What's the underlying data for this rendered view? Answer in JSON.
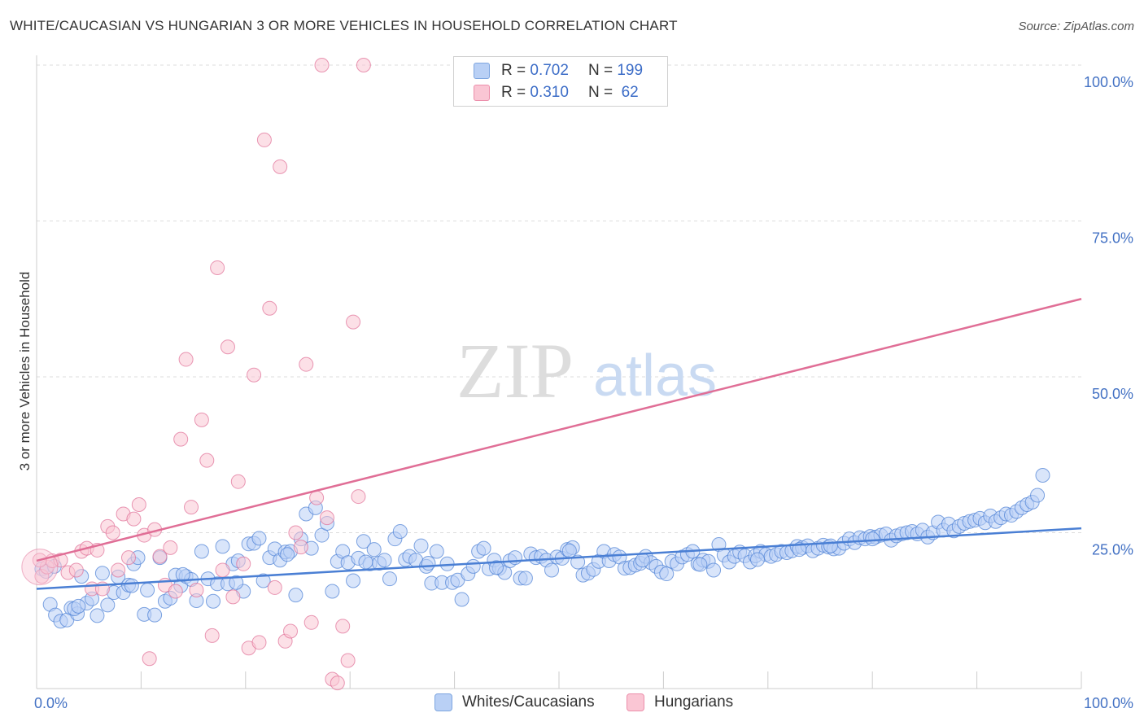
{
  "title": "WHITE/CAUCASIAN VS HUNGARIAN 3 OR MORE VEHICLES IN HOUSEHOLD CORRELATION CHART",
  "source": "Source: ZipAtlas.com",
  "watermark": {
    "zip": "ZIP",
    "atlas": "atlas"
  },
  "legend": {
    "rows": [
      {
        "r_label": "R =",
        "r_value": "0.702",
        "n_label": "N =",
        "n_value": "199",
        "color": "#7ea6e0"
      },
      {
        "r_label": "R =",
        "r_value": "0.310",
        "n_label": "N =",
        "n_value": " 62",
        "color": "#f0a0b8"
      }
    ]
  },
  "bottom_legend": [
    {
      "label": "Whites/Caucasians",
      "fill": "#b9d0f5",
      "border": "#7ea6e0"
    },
    {
      "label": "Hungarians",
      "fill": "#fac6d4",
      "border": "#ec8fab"
    }
  ],
  "chart_data": {
    "type": "scatter",
    "xlabel": "",
    "ylabel": "3 or more Vehicles in Household",
    "xlim": [
      0,
      100
    ],
    "ylim": [
      0,
      100
    ],
    "x_tick_labels": [
      "0.0%",
      "100.0%"
    ],
    "y_tick_labels": [
      "25.0%",
      "50.0%",
      "75.0%",
      "100.0%"
    ],
    "y_ticks": [
      25,
      50,
      75,
      100
    ],
    "grid": true,
    "series": [
      {
        "name": "Whites/Caucasians",
        "color": "#4a7fd4",
        "fill": "#b9d0f5",
        "trend": [
          [
            0,
            16.0
          ],
          [
            100,
            25.7
          ]
        ],
        "points": [
          [
            0.5,
            19.2
          ],
          [
            1.3,
            13.5
          ],
          [
            1.8,
            11.8
          ],
          [
            2.3,
            10.8
          ],
          [
            2.9,
            11.0
          ],
          [
            3.3,
            12.9
          ],
          [
            3.9,
            12.0
          ],
          [
            4.3,
            18.0
          ],
          [
            4.8,
            13.7
          ],
          [
            5.3,
            14.4
          ],
          [
            5.8,
            11.7
          ],
          [
            6.3,
            18.5
          ],
          [
            6.8,
            13.4
          ],
          [
            7.4,
            15.4
          ],
          [
            7.8,
            17.9
          ],
          [
            8.3,
            15.4
          ],
          [
            8.8,
            16.6
          ],
          [
            9.3,
            20.0
          ],
          [
            9.7,
            21.0
          ],
          [
            10.3,
            11.9
          ],
          [
            10.6,
            15.8
          ],
          [
            11.3,
            11.8
          ],
          [
            11.8,
            21.0
          ],
          [
            12.3,
            14.0
          ],
          [
            12.8,
            14.5
          ],
          [
            13.3,
            18.2
          ],
          [
            13.8,
            16.5
          ],
          [
            14.3,
            18.0
          ],
          [
            14.8,
            17.5
          ],
          [
            15.3,
            14.1
          ],
          [
            15.8,
            22.0
          ],
          [
            16.4,
            17.6
          ],
          [
            16.9,
            14.0
          ],
          [
            17.3,
            16.8
          ],
          [
            17.8,
            22.8
          ],
          [
            18.3,
            16.8
          ],
          [
            18.8,
            20.0
          ],
          [
            19.3,
            20.5
          ],
          [
            19.8,
            15.6
          ],
          [
            20.3,
            23.2
          ],
          [
            20.8,
            23.3
          ],
          [
            21.3,
            24.1
          ],
          [
            21.7,
            17.3
          ],
          [
            22.3,
            21.0
          ],
          [
            22.8,
            22.4
          ],
          [
            23.3,
            20.6
          ],
          [
            23.8,
            21.9
          ],
          [
            24.3,
            22.0
          ],
          [
            24.8,
            15.0
          ],
          [
            25.3,
            24.0
          ],
          [
            25.8,
            28.0
          ],
          [
            26.3,
            22.5
          ],
          [
            26.7,
            29.0
          ],
          [
            27.3,
            24.6
          ],
          [
            27.8,
            26.5
          ],
          [
            28.3,
            15.6
          ],
          [
            28.8,
            20.4
          ],
          [
            29.3,
            22.0
          ],
          [
            29.8,
            20.2
          ],
          [
            30.3,
            17.3
          ],
          [
            30.8,
            20.9
          ],
          [
            31.3,
            23.6
          ],
          [
            31.9,
            20.0
          ],
          [
            32.3,
            22.3
          ],
          [
            32.8,
            20.1
          ],
          [
            33.3,
            20.6
          ],
          [
            33.8,
            17.6
          ],
          [
            34.3,
            24.0
          ],
          [
            34.8,
            25.2
          ],
          [
            35.3,
            20.7
          ],
          [
            35.7,
            21.2
          ],
          [
            36.3,
            20.6
          ],
          [
            36.8,
            22.9
          ],
          [
            37.3,
            19.6
          ],
          [
            37.8,
            16.9
          ],
          [
            38.3,
            22.0
          ],
          [
            38.8,
            17.0
          ],
          [
            39.3,
            20.0
          ],
          [
            39.8,
            17.0
          ],
          [
            40.3,
            17.4
          ],
          [
            40.7,
            14.3
          ],
          [
            41.3,
            18.4
          ],
          [
            41.8,
            19.6
          ],
          [
            42.3,
            22.0
          ],
          [
            42.8,
            22.5
          ],
          [
            43.3,
            19.2
          ],
          [
            43.8,
            20.6
          ],
          [
            44.3,
            19.3
          ],
          [
            44.8,
            18.6
          ],
          [
            45.3,
            20.5
          ],
          [
            45.8,
            21.0
          ],
          [
            46.3,
            17.7
          ],
          [
            46.8,
            17.7
          ],
          [
            47.3,
            21.6
          ],
          [
            47.8,
            21.0
          ],
          [
            48.3,
            21.2
          ],
          [
            48.8,
            20.6
          ],
          [
            49.3,
            19.0
          ],
          [
            49.8,
            21.1
          ],
          [
            50.3,
            20.9
          ],
          [
            50.8,
            22.3
          ],
          [
            51.3,
            22.6
          ],
          [
            51.8,
            20.3
          ],
          [
            52.3,
            18.2
          ],
          [
            52.8,
            18.5
          ],
          [
            53.3,
            19.1
          ],
          [
            53.8,
            20.4
          ],
          [
            54.3,
            22.0
          ],
          [
            54.8,
            20.5
          ],
          [
            55.3,
            21.5
          ],
          [
            55.8,
            21.1
          ],
          [
            56.3,
            19.3
          ],
          [
            56.8,
            19.4
          ],
          [
            57.3,
            19.8
          ],
          [
            57.8,
            20.1
          ],
          [
            58.3,
            21.2
          ],
          [
            58.8,
            20.2
          ],
          [
            59.3,
            19.6
          ],
          [
            59.8,
            18.7
          ],
          [
            60.3,
            18.4
          ],
          [
            60.8,
            20.4
          ],
          [
            61.3,
            20.0
          ],
          [
            61.8,
            21.1
          ],
          [
            62.3,
            21.5
          ],
          [
            62.8,
            22.0
          ],
          [
            63.3,
            20.0
          ],
          [
            63.8,
            20.6
          ],
          [
            64.3,
            20.4
          ],
          [
            64.8,
            19.0
          ],
          [
            65.3,
            23.1
          ],
          [
            65.8,
            21.4
          ],
          [
            66.3,
            20.3
          ],
          [
            66.8,
            21.2
          ],
          [
            67.3,
            21.9
          ],
          [
            67.8,
            21.3
          ],
          [
            68.3,
            20.3
          ],
          [
            68.8,
            21.3
          ],
          [
            69.3,
            22.0
          ],
          [
            69.8,
            21.5
          ],
          [
            70.3,
            21.2
          ],
          [
            70.8,
            21.5
          ],
          [
            71.3,
            22.0
          ],
          [
            71.8,
            21.8
          ],
          [
            72.3,
            22.1
          ],
          [
            72.8,
            22.8
          ],
          [
            73.3,
            22.6
          ],
          [
            73.8,
            22.9
          ],
          [
            74.3,
            22.1
          ],
          [
            74.8,
            22.5
          ],
          [
            75.3,
            23.0
          ],
          [
            75.8,
            22.7
          ],
          [
            76.3,
            22.4
          ],
          [
            76.8,
            22.5
          ],
          [
            77.3,
            23.3
          ],
          [
            77.8,
            24.0
          ],
          [
            78.3,
            23.4
          ],
          [
            78.8,
            24.2
          ],
          [
            79.3,
            24.0
          ],
          [
            79.8,
            24.4
          ],
          [
            80.3,
            24.3
          ],
          [
            80.8,
            24.6
          ],
          [
            81.3,
            24.8
          ],
          [
            81.8,
            23.8
          ],
          [
            82.3,
            24.5
          ],
          [
            82.8,
            24.8
          ],
          [
            83.3,
            25.0
          ],
          [
            83.8,
            25.2
          ],
          [
            84.3,
            24.8
          ],
          [
            84.8,
            25.4
          ],
          [
            85.3,
            24.3
          ],
          [
            85.8,
            25.0
          ],
          [
            86.3,
            26.7
          ],
          [
            86.8,
            25.4
          ],
          [
            87.3,
            26.4
          ],
          [
            87.8,
            25.3
          ],
          [
            88.3,
            26.0
          ],
          [
            88.8,
            26.5
          ],
          [
            89.3,
            26.8
          ],
          [
            89.8,
            27.0
          ],
          [
            90.3,
            27.3
          ],
          [
            90.8,
            26.6
          ],
          [
            91.3,
            27.7
          ],
          [
            91.8,
            26.8
          ],
          [
            92.3,
            27.4
          ],
          [
            92.8,
            28.0
          ],
          [
            93.3,
            27.8
          ],
          [
            93.8,
            28.4
          ],
          [
            94.3,
            29.0
          ],
          [
            94.8,
            29.5
          ],
          [
            95.3,
            29.9
          ],
          [
            95.8,
            31.0
          ],
          [
            96.3,
            34.2
          ],
          [
            0.9,
            18.8
          ],
          [
            1.7,
            19.6
          ],
          [
            3.6,
            12.8
          ],
          [
            4.0,
            13.2
          ],
          [
            9.1,
            16.5
          ],
          [
            14.0,
            18.3
          ],
          [
            19.1,
            17.0
          ],
          [
            24.0,
            21.5
          ],
          [
            31.5,
            20.3
          ],
          [
            37.5,
            20.1
          ],
          [
            44.0,
            19.4
          ],
          [
            51.0,
            22.1
          ],
          [
            58.0,
            20.6
          ],
          [
            63.5,
            19.9
          ],
          [
            69.0,
            20.7
          ],
          [
            73.0,
            22.3
          ],
          [
            76.0,
            22.9
          ],
          [
            80.0,
            24.0
          ]
        ]
      },
      {
        "name": "Hungarians",
        "color": "#e06e96",
        "fill": "#fac6d4",
        "trend": [
          [
            0,
            20.5
          ],
          [
            100,
            62.5
          ]
        ],
        "points": [
          [
            0.5,
            18.0
          ],
          [
            1.0,
            19.5
          ],
          [
            1.5,
            20.5
          ],
          [
            2.3,
            20.6
          ],
          [
            3.0,
            18.6
          ],
          [
            3.8,
            19.0
          ],
          [
            4.3,
            22.0
          ],
          [
            4.8,
            22.5
          ],
          [
            5.3,
            16.0
          ],
          [
            5.8,
            22.2
          ],
          [
            6.3,
            16.0
          ],
          [
            6.8,
            26.0
          ],
          [
            7.3,
            25.0
          ],
          [
            7.8,
            19.0
          ],
          [
            8.3,
            28.0
          ],
          [
            8.8,
            21.0
          ],
          [
            9.3,
            27.2
          ],
          [
            9.8,
            29.5
          ],
          [
            10.3,
            24.6
          ],
          [
            10.8,
            4.8
          ],
          [
            11.3,
            25.5
          ],
          [
            11.8,
            21.2
          ],
          [
            12.3,
            16.6
          ],
          [
            12.8,
            22.6
          ],
          [
            13.3,
            15.6
          ],
          [
            13.8,
            40.0
          ],
          [
            14.3,
            52.8
          ],
          [
            14.8,
            29.1
          ],
          [
            15.3,
            15.8
          ],
          [
            15.8,
            43.1
          ],
          [
            16.3,
            36.6
          ],
          [
            16.8,
            8.5
          ],
          [
            17.3,
            67.5
          ],
          [
            17.8,
            19.0
          ],
          [
            18.3,
            54.8
          ],
          [
            18.8,
            14.7
          ],
          [
            19.3,
            33.2
          ],
          [
            19.8,
            20.0
          ],
          [
            20.3,
            6.5
          ],
          [
            20.8,
            50.3
          ],
          [
            21.3,
            7.4
          ],
          [
            21.8,
            88.0
          ],
          [
            22.3,
            61.0
          ],
          [
            22.8,
            16.2
          ],
          [
            23.3,
            83.7
          ],
          [
            23.8,
            7.6
          ],
          [
            24.3,
            9.2
          ],
          [
            24.8,
            25.0
          ],
          [
            25.3,
            22.7
          ],
          [
            25.8,
            52.0
          ],
          [
            26.3,
            10.6
          ],
          [
            26.8,
            30.6
          ],
          [
            27.3,
            100.0
          ],
          [
            27.8,
            27.4
          ],
          [
            28.3,
            1.5
          ],
          [
            28.8,
            0.9
          ],
          [
            29.3,
            10.0
          ],
          [
            29.8,
            4.5
          ],
          [
            30.3,
            58.8
          ],
          [
            30.8,
            30.8
          ],
          [
            31.3,
            100.0
          ],
          [
            0.3,
            20.6
          ]
        ]
      }
    ]
  }
}
